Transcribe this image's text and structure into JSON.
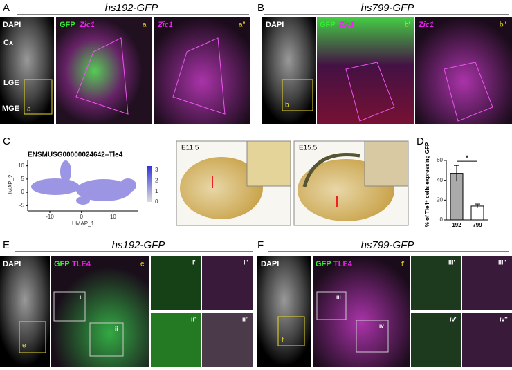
{
  "panels": {
    "A": {
      "letter": "A",
      "title": "hs192-GFP",
      "dapi": "DAPI",
      "cx": "Cx",
      "lge": "LGE",
      "mge": "MGE",
      "box": "a",
      "gfp": "GFP",
      "zic": "Zic1",
      "p1": "a'",
      "zic2": "Zic1",
      "p2": "a''"
    },
    "B": {
      "letter": "B",
      "title": "hs799-GFP",
      "dapi": "DAPI",
      "box": "b",
      "gfp": "GFP",
      "zic": "Zic1",
      "p1": "b'",
      "zic2": "Zic1",
      "p2": "b''"
    },
    "C": {
      "letter": "C",
      "e1": "E11.5",
      "e2": "E15.5"
    },
    "D": {
      "letter": "D"
    },
    "E": {
      "letter": "E",
      "title": "hs192-GFP",
      "dapi": "DAPI",
      "box": "e",
      "gfp": "GFP",
      "tle": "TLE4",
      "p1": "e'",
      "i": "i",
      "ii": "ii",
      "i1": "i'",
      "i2": "i''",
      "ii1": "ii'",
      "ii2": "ii''"
    },
    "F": {
      "letter": "F",
      "title": "hs799-GFP",
      "dapi": "DAPI",
      "box": "f",
      "gfp": "GFP",
      "tle": "TLE4",
      "p1": "f'",
      "iii": "iii",
      "iv": "iv",
      "iii1": "iii'",
      "iii2": "iii''",
      "iv1": "iv'",
      "iv2": "iv''"
    }
  },
  "umap": {
    "title": "ENSMUSG00000024642–Tle4",
    "xlabel": "UMAP_1",
    "ylabel": "UMAP_2",
    "xlim": [
      -17,
      18
    ],
    "ylim": [
      -7,
      12
    ],
    "xticks": [
      -10,
      0,
      10
    ],
    "yticks": [
      10,
      5,
      0,
      -5
    ],
    "colorbar_ticks": [
      3,
      2,
      1,
      0
    ],
    "colorbar_lim": [
      0,
      3.4
    ]
  },
  "chart_data": {
    "type": "bar",
    "ylabel": "% of Tle4⁺ cells expressing GFP",
    "categories": [
      "192",
      "799"
    ],
    "values": [
      47,
      14
    ],
    "errors": [
      8,
      2
    ],
    "colors": [
      "#aaaaaa",
      "#ffffff"
    ],
    "ylim": [
      0,
      60
    ],
    "yticks": [
      0,
      20,
      40,
      60
    ],
    "annotation": "*"
  }
}
